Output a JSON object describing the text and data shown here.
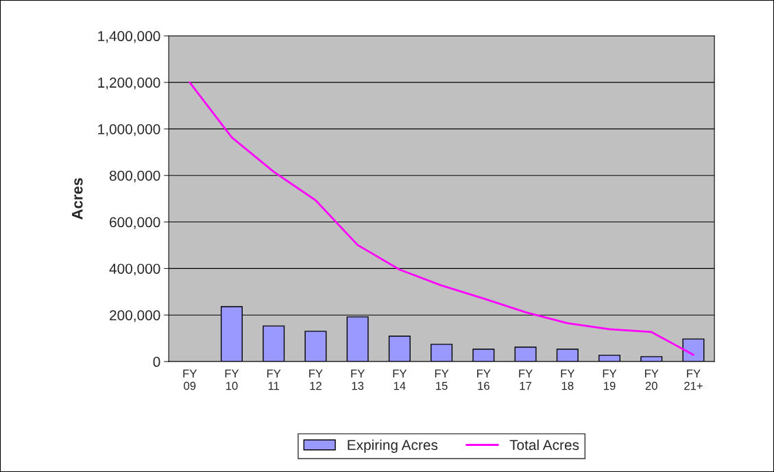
{
  "chart_data": {
    "type": "bar",
    "ylabel": "Acres",
    "categories": [
      "FY\n09",
      "FY\n10",
      "FY\n11",
      "FY\n12",
      "FY\n13",
      "FY\n14",
      "FY\n15",
      "FY\n16",
      "FY\n17",
      "FY\n18",
      "FY\n19",
      "FY\n20",
      "FY\n21+"
    ],
    "series": [
      {
        "name": "Expiring Acres",
        "color": "#9999ff",
        "values": [
          null,
          236000,
          153000,
          130000,
          192000,
          109000,
          74000,
          53000,
          62000,
          53000,
          27000,
          21000,
          97000
        ]
      },
      {
        "name": "Total Acres",
        "type": "line",
        "color": "#ff00ff",
        "values": [
          1200000,
          964000,
          816000,
          693000,
          501000,
          395000,
          327000,
          271000,
          212000,
          165000,
          139000,
          127000,
          29000
        ]
      }
    ],
    "ylim": [
      0,
      1400000
    ],
    "yticks": [
      {
        "value": 0,
        "label": "0"
      },
      {
        "value": 200000,
        "label": "200,000"
      },
      {
        "value": 400000,
        "label": "400,000"
      },
      {
        "value": 600000,
        "label": "600,000"
      },
      {
        "value": 800000,
        "label": "800,000"
      },
      {
        "value": 1000000,
        "label": "1,000,000"
      },
      {
        "value": 1200000,
        "label": "1,200,000"
      },
      {
        "value": 1400000,
        "label": "1,400,000"
      }
    ],
    "grid": "y",
    "legend": "bottom",
    "marker": "none",
    "line_style": "solid"
  }
}
